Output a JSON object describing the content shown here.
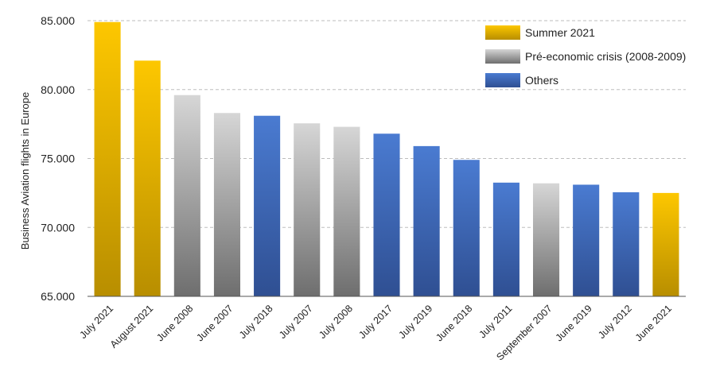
{
  "chart_data": {
    "type": "bar",
    "ylabel": "Business Aviation flights in Europe",
    "ylim": [
      65000,
      85000
    ],
    "yticks": [
      65000,
      70000,
      75000,
      80000,
      85000
    ],
    "ytick_labels": [
      "65.000",
      "70.000",
      "75.000",
      "80.000",
      "85.000"
    ],
    "grid": true,
    "legend_position": "top-right",
    "legend": [
      {
        "key": "summer",
        "label": "Summer 2021"
      },
      {
        "key": "crisis",
        "label": "Pré-economic crisis (2008-2009)"
      },
      {
        "key": "others",
        "label": "Others"
      }
    ],
    "colors": {
      "summer": {
        "top": "#fdc700",
        "bottom": "#b88e00"
      },
      "crisis": {
        "top": "#d6d6d6",
        "bottom": "#6e6e6e"
      },
      "others": {
        "top": "#4a7bd1",
        "bottom": "#2f4f92"
      }
    },
    "categories": [
      "July 2021",
      "August 2021",
      "June 2008",
      "June 2007",
      "July 2018",
      "July 2007",
      "July 2008",
      "July 2017",
      "July 2019",
      "June 2018",
      "July 2011",
      "September 2007",
      "June 2019",
      "July 2012",
      "June 2021"
    ],
    "values": [
      84900,
      82100,
      79600,
      78300,
      78100,
      77550,
      77300,
      76800,
      75900,
      74900,
      73250,
      73200,
      73100,
      72550,
      72500
    ],
    "groups": [
      "summer",
      "summer",
      "crisis",
      "crisis",
      "others",
      "crisis",
      "crisis",
      "others",
      "others",
      "others",
      "others",
      "crisis",
      "others",
      "others",
      "summer"
    ]
  }
}
